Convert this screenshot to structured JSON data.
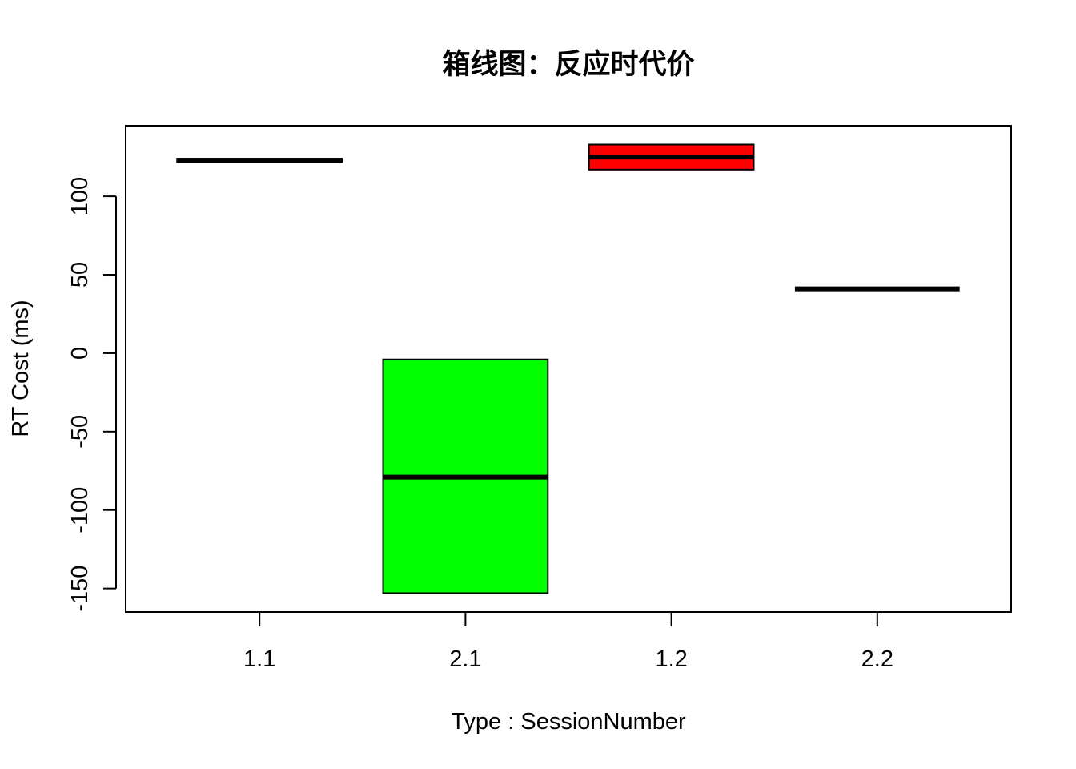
{
  "chart_data": {
    "type": "boxplot",
    "title": "箱线图：反应时代价",
    "xlabel": "Type : SessionNumber",
    "ylabel": "RT Cost (ms)",
    "categories": [
      "1.1",
      "2.1",
      "1.2",
      "2.2"
    ],
    "ylim": [
      -165,
      145
    ],
    "yticks": [
      -150,
      -100,
      -50,
      0,
      50,
      100
    ],
    "ytick_labels": [
      "-150",
      "-100",
      "-50",
      "0",
      "50",
      "100"
    ],
    "boxes": [
      {
        "category": "1.1",
        "q1": 122,
        "median": 123,
        "q3": 124,
        "color": "#ffffff"
      },
      {
        "category": "2.1",
        "q1": -153,
        "median": -79,
        "q3": -4,
        "color": "#00ff00"
      },
      {
        "category": "1.2",
        "q1": 117,
        "median": 125,
        "q3": 133,
        "color": "#ff0000"
      },
      {
        "category": "2.2",
        "q1": 41,
        "median": 41,
        "q3": 41,
        "color": "#ffffff"
      }
    ],
    "grid": false
  }
}
